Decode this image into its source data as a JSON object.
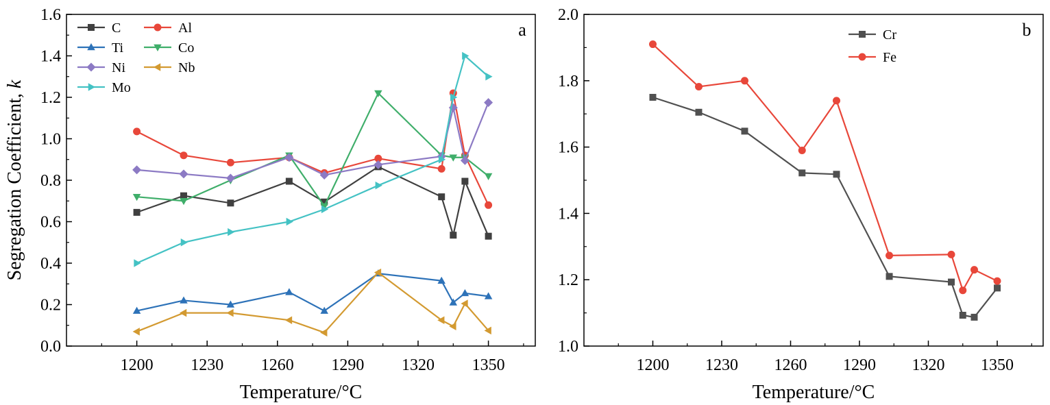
{
  "chart_data": [
    {
      "type": "line",
      "panel_label": "a",
      "xlabel": "Temperature/°C",
      "ylabel": "Segregation Coefficient, k",
      "xlim": [
        1170,
        1370
      ],
      "ylim": [
        0.0,
        1.6
      ],
      "xticks": [
        "1200",
        "1230",
        "1260",
        "1290",
        "1320",
        "1350"
      ],
      "yticks": [
        "0.0",
        "0.2",
        "0.4",
        "0.6",
        "0.8",
        "1.0",
        "1.2",
        "1.4",
        "1.6"
      ],
      "legend_position": "top-left",
      "grid": false,
      "series": [
        {
          "name": "C",
          "color": "#404040",
          "marker": "square",
          "x": [
            1200,
            1220,
            1240,
            1265,
            1280,
            1303,
            1330,
            1335,
            1340,
            1350
          ],
          "y": [
            0.645,
            0.725,
            0.69,
            0.795,
            0.695,
            0.865,
            0.72,
            0.535,
            0.795,
            0.53
          ]
        },
        {
          "name": "Al",
          "color": "#e8473a",
          "marker": "circle",
          "x": [
            1200,
            1220,
            1240,
            1265,
            1280,
            1303,
            1330,
            1335,
            1340,
            1350
          ],
          "y": [
            1.035,
            0.92,
            0.885,
            0.91,
            0.835,
            0.905,
            0.855,
            1.22,
            0.92,
            0.68
          ]
        },
        {
          "name": "Ti",
          "color": "#2d72b8",
          "marker": "triangle-up",
          "x": [
            1200,
            1220,
            1240,
            1265,
            1280,
            1303,
            1330,
            1335,
            1340,
            1350
          ],
          "y": [
            0.17,
            0.22,
            0.2,
            0.26,
            0.17,
            0.35,
            0.315,
            0.21,
            0.255,
            0.24
          ]
        },
        {
          "name": "Co",
          "color": "#3fae6a",
          "marker": "triangle-down",
          "x": [
            1200,
            1220,
            1240,
            1265,
            1280,
            1303,
            1330,
            1335,
            1340,
            1350
          ],
          "y": [
            0.72,
            0.7,
            0.8,
            0.92,
            0.675,
            1.22,
            0.92,
            0.91,
            0.91,
            0.82
          ]
        },
        {
          "name": "Ni",
          "color": "#8c7ac4",
          "marker": "diamond",
          "x": [
            1200,
            1220,
            1240,
            1265,
            1280,
            1303,
            1330,
            1335,
            1340,
            1350
          ],
          "y": [
            0.85,
            0.83,
            0.81,
            0.91,
            0.825,
            0.875,
            0.915,
            1.15,
            0.895,
            1.175
          ]
        },
        {
          "name": "Nb",
          "color": "#d39a31",
          "marker": "triangle-left",
          "x": [
            1200,
            1220,
            1240,
            1265,
            1280,
            1303,
            1330,
            1335,
            1340,
            1350
          ],
          "y": [
            0.07,
            0.16,
            0.16,
            0.125,
            0.065,
            0.355,
            0.125,
            0.095,
            0.205,
            0.075
          ]
        },
        {
          "name": "Mo",
          "color": "#44c2c4",
          "marker": "triangle-right",
          "x": [
            1200,
            1220,
            1240,
            1265,
            1280,
            1303,
            1330,
            1335,
            1340,
            1350
          ],
          "y": [
            0.4,
            0.5,
            0.55,
            0.6,
            0.66,
            0.775,
            0.9,
            1.2,
            1.4,
            1.3
          ]
        }
      ]
    },
    {
      "type": "line",
      "panel_label": "b",
      "xlabel": "Temperature/°C",
      "ylabel": "",
      "xlim": [
        1170,
        1370
      ],
      "ylim": [
        1.0,
        2.0
      ],
      "xticks": [
        "1200",
        "1230",
        "1260",
        "1290",
        "1320",
        "1350"
      ],
      "yticks": [
        "1.0",
        "1.2",
        "1.4",
        "1.6",
        "1.8",
        "2.0"
      ],
      "legend_position": "top-center",
      "grid": false,
      "series": [
        {
          "name": "Cr",
          "color": "#505050",
          "marker": "square",
          "x": [
            1200,
            1220,
            1240,
            1265,
            1280,
            1303,
            1330,
            1335,
            1340,
            1350
          ],
          "y": [
            1.75,
            1.705,
            1.648,
            1.522,
            1.518,
            1.21,
            1.193,
            1.093,
            1.087,
            1.175
          ]
        },
        {
          "name": "Fe",
          "color": "#e8473a",
          "marker": "circle",
          "x": [
            1200,
            1220,
            1240,
            1265,
            1280,
            1303,
            1330,
            1335,
            1340,
            1350
          ],
          "y": [
            1.91,
            1.782,
            1.8,
            1.59,
            1.74,
            1.273,
            1.276,
            1.168,
            1.23,
            1.196
          ]
        }
      ]
    }
  ]
}
